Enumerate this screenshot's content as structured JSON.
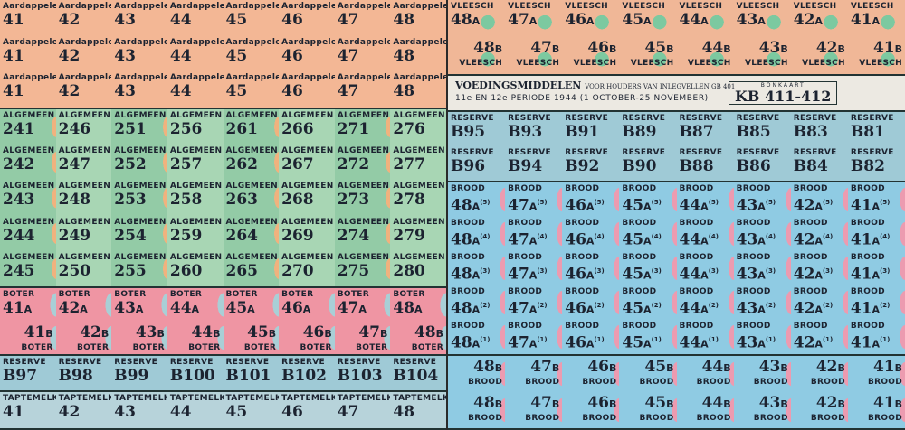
{
  "left": {
    "aardappelen": {
      "label": "Aardappelen",
      "rows": [
        [
          "41",
          "42",
          "43",
          "44",
          "45",
          "46",
          "47",
          "48"
        ],
        [
          "41",
          "42",
          "43",
          "44",
          "45",
          "46",
          "47",
          "48"
        ],
        [
          "41",
          "42",
          "43",
          "44",
          "45",
          "46",
          "47",
          "48"
        ]
      ]
    },
    "algemeen": {
      "label": "ALGEMEEN",
      "rows": [
        [
          "241",
          "246",
          "251",
          "256",
          "261",
          "266",
          "271",
          "276"
        ],
        [
          "242",
          "247",
          "252",
          "257",
          "262",
          "267",
          "272",
          "277"
        ],
        [
          "243",
          "248",
          "253",
          "258",
          "263",
          "268",
          "273",
          "278"
        ],
        [
          "244",
          "249",
          "254",
          "259",
          "264",
          "269",
          "274",
          "279"
        ],
        [
          "245",
          "250",
          "255",
          "260",
          "265",
          "270",
          "275",
          "280"
        ]
      ]
    },
    "boter": {
      "label": "BOTER",
      "numbers": [
        "41",
        "42",
        "43",
        "44",
        "45",
        "46",
        "47",
        "48"
      ],
      "suffix_a": "A",
      "suffix_b": "B"
    },
    "reserve": {
      "label": "RESERVE",
      "numbers": [
        "B97",
        "B98",
        "B99",
        "B100",
        "B101",
        "B102",
        "B103",
        "B104"
      ]
    },
    "taptemelk": {
      "label": "TAPTEMELK",
      "numbers": [
        "41",
        "42",
        "43",
        "44",
        "45",
        "46",
        "47",
        "48"
      ]
    }
  },
  "right": {
    "vleesch": {
      "label": "VLEESCH",
      "numbers": [
        "48",
        "47",
        "46",
        "45",
        "44",
        "43",
        "42",
        "41"
      ],
      "suffix_a": "A",
      "suffix_b": "B"
    },
    "header": {
      "title": "VOEDINGSMIDDELEN",
      "subtitle": "VOOR HOUDERS VAN INLEGVELLEN GB 401",
      "period": "11e EN 12e PERIODE 1944 (1 OCTOBER-25 NOVEMBER)",
      "card_label": "BONKAART",
      "card_number": "KB 411-412"
    },
    "reserve": {
      "label": "RESERVE",
      "rows": [
        [
          "B95",
          "B93",
          "B91",
          "B89",
          "B87",
          "B85",
          "B83",
          "B81"
        ],
        [
          "B96",
          "B94",
          "B92",
          "B90",
          "B88",
          "B86",
          "B84",
          "B82"
        ]
      ]
    },
    "brood": {
      "label": "BROOD",
      "numbers": [
        "48",
        "47",
        "46",
        "45",
        "44",
        "43",
        "42",
        "41"
      ],
      "a_rows": [
        "(5)",
        "(4)",
        "(3)",
        "(2)",
        "(1)"
      ],
      "suffix_a": "A",
      "suffix_b": "B",
      "b_row_count": 2
    }
  },
  "colors": {
    "aardappelen": "#f3b795",
    "algemeen": "#93cba6",
    "boter": "#ef95a3",
    "reserve": "#9fcad6",
    "taptemelk": "#b7d3da",
    "vleesch": "#f0b797",
    "brood": "#8fcbe3"
  }
}
